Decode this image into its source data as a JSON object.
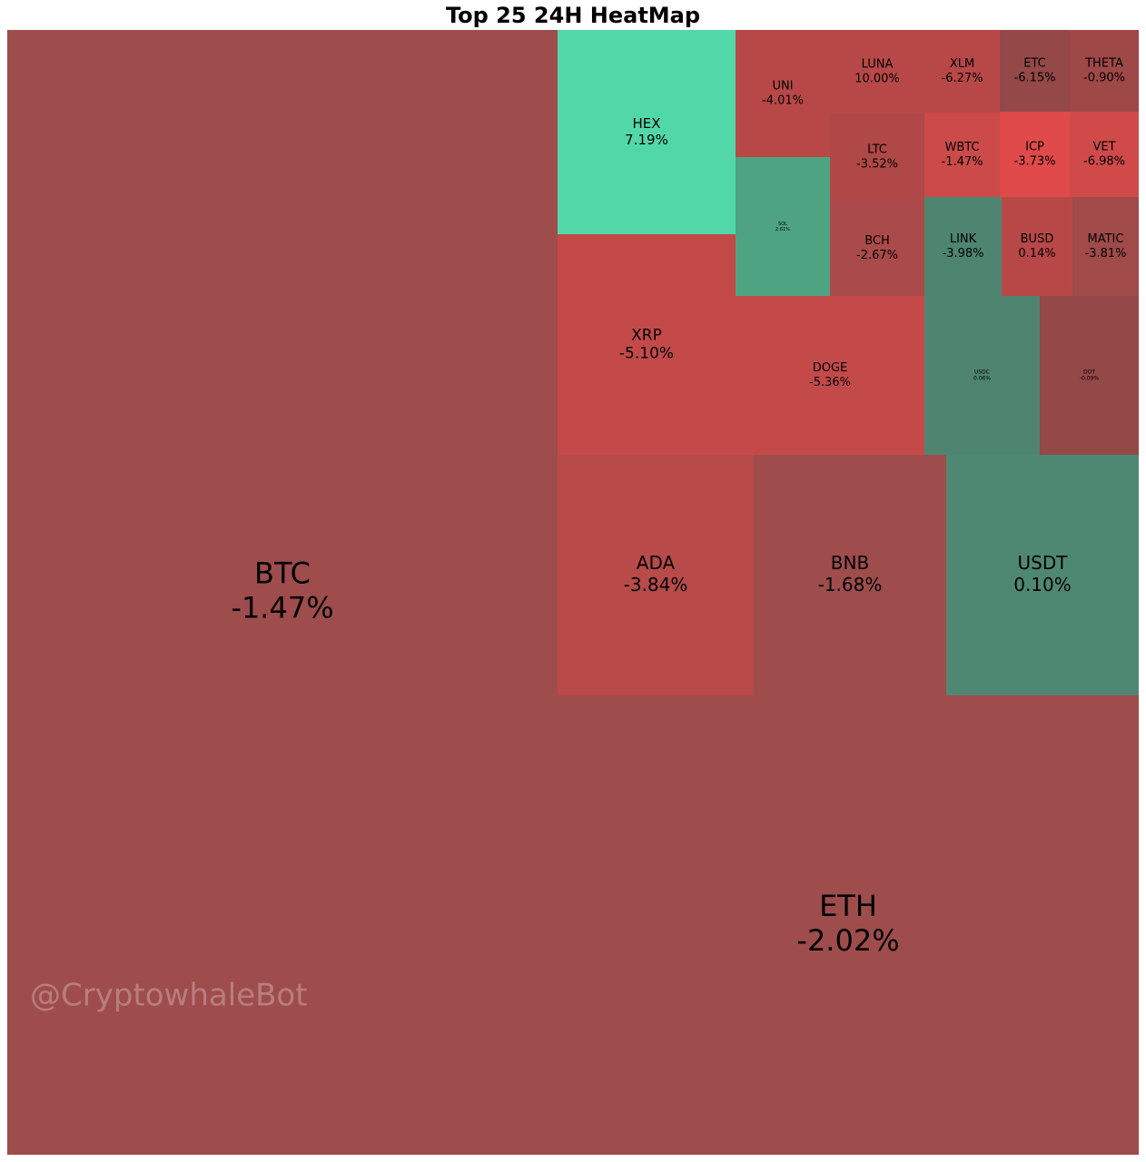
{
  "chart_data": {
    "type": "treemap",
    "title": "Top 25 24H HeatMap",
    "watermark": "@CryptowhaleBot",
    "categories": [
      "BTC",
      "ETH",
      "HEX",
      "XRP",
      "DOGE",
      "UNI",
      "SOL",
      "LUNA",
      "LTC",
      "BCH",
      "XLM",
      "ETC",
      "THETA",
      "WBTC",
      "ICP",
      "VET",
      "LINK",
      "BUSD",
      "MATIC",
      "USDC",
      "DOT",
      "ADA",
      "BNB",
      "USDT"
    ],
    "values": [
      -1.47,
      -2.02,
      7.19,
      -5.1,
      -5.36,
      -4.01,
      2.61,
      10.0,
      -3.52,
      -2.67,
      -6.27,
      -6.15,
      -0.9,
      -1.47,
      -3.73,
      -6.98,
      -3.98,
      0.14,
      -3.81,
      0.06,
      -0.09,
      -3.84,
      -1.68,
      0.1
    ],
    "value_labels": [
      "-1.47%",
      "-2.02%",
      "7.19%",
      "-5.10%",
      "-5.36%",
      "-4.01%",
      "2.61%",
      "10.00%",
      "-3.52%",
      "-2.67%",
      "-6.27%",
      "-6.15%",
      "-0.90%",
      "-1.47%",
      "-3.73%",
      "-6.98%",
      "-3.98%",
      "0.14%",
      "-3.81%",
      "0.06%",
      "-0.09%",
      "-3.84%",
      "-1.68%",
      "0.10%"
    ],
    "colors": [
      "#9e4c4c",
      "#9e4c4c",
      "#52d8a8",
      "#c44a4a",
      "#c44a4a",
      "#b84848",
      "#4ea383",
      "#b84848",
      "#b04848",
      "#ab4a4a",
      "#b84848",
      "#944848",
      "#9e4848",
      "#cc4a4a",
      "#e04a4a",
      "#d04a4a",
      "#4d8570",
      "#b84848",
      "#a04a4a",
      "#4f8570",
      "#944848",
      "#b84a4a",
      "#9e4c4c",
      "#4f8872"
    ]
  }
}
